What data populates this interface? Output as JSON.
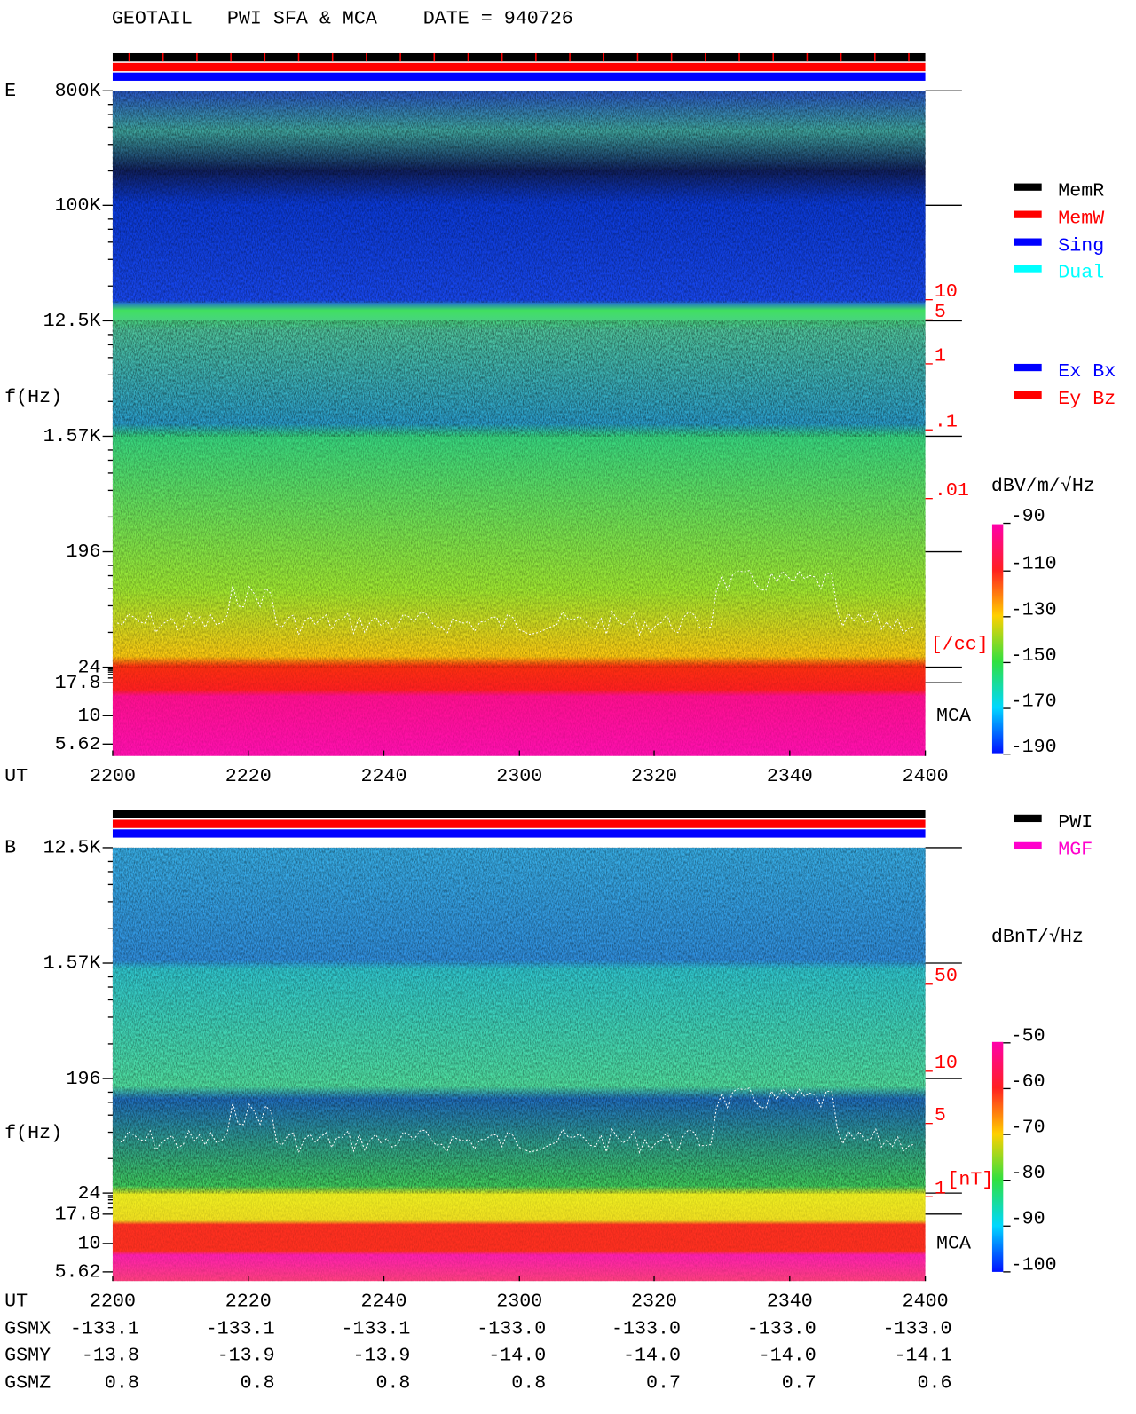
{
  "header": {
    "title": "GEOTAIL   PWI SFA & MCA    DATE = 940726"
  },
  "panels": [
    {
      "label": "E",
      "freq_label": "f(Hz)",
      "freq_ticks": [
        "800K",
        "100K",
        "12.5K",
        "1.57K",
        "196",
        "24",
        "17.8",
        "10",
        "5.62"
      ],
      "time_label": "UT",
      "time_ticks": [
        "2200",
        "2220",
        "2240",
        "2300",
        "2320",
        "2340",
        "2400"
      ],
      "density_ticks": [
        "10",
        "5",
        "1",
        ".1",
        ".01"
      ],
      "density_unit": "[/cc]",
      "mca": "MCA",
      "colorbar_title": "dBV/m/√Hz",
      "colorbar_ticks": [
        "-90",
        "-110",
        "-130",
        "-150",
        "-170",
        "-190"
      ]
    },
    {
      "label": "B",
      "freq_label": "f(Hz)",
      "freq_ticks": [
        "12.5K",
        "1.57K",
        "196",
        "24",
        "17.8",
        "10",
        "5.62"
      ],
      "time_label": "UT",
      "time_ticks": [
        "2200",
        "2220",
        "2240",
        "2300",
        "2320",
        "2340",
        "2400"
      ],
      "density_ticks": [
        "50",
        "10",
        "5",
        "1"
      ],
      "density_unit": "[nT]",
      "mca": "MCA",
      "colorbar_title": "dBnT/√Hz",
      "colorbar_ticks": [
        "-50",
        "-60",
        "-70",
        "-80",
        "-90",
        "-100"
      ]
    }
  ],
  "legends": {
    "mode": [
      "MemR",
      "MemW",
      "Sing",
      "Dual"
    ],
    "channel": [
      "Ex Bx",
      "Ey Bz"
    ],
    "source": [
      "PWI",
      "MGF"
    ]
  },
  "ephemeris": {
    "rows": [
      {
        "name": "GSMX",
        "values": [
          "-133.1",
          "-133.1",
          "-133.1",
          "-133.0",
          "-133.0",
          "-133.0",
          "-133.0"
        ]
      },
      {
        "name": "GSMY",
        "values": [
          "-13.8",
          "-13.9",
          "-13.9",
          "-14.0",
          "-14.0",
          "-14.0",
          "-14.1"
        ]
      },
      {
        "name": "GSMZ",
        "values": [
          "0.8",
          "0.8",
          "0.8",
          "0.8",
          "0.7",
          "0.7",
          "0.6"
        ]
      }
    ]
  }
}
